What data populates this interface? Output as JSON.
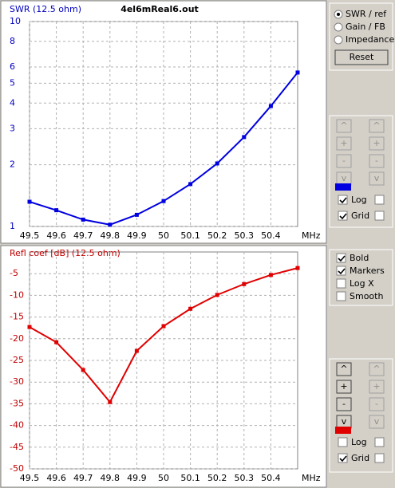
{
  "file_name": "4el6mReal6.out",
  "chart_data": [
    {
      "type": "line",
      "title": "SWR (12.5 ohm)",
      "x_unit": "MHz",
      "x": [
        49.5,
        49.6,
        49.7,
        49.8,
        49.9,
        50,
        50.1,
        50.2,
        50.3,
        50.4,
        50.5
      ],
      "series": [
        {
          "name": "SWR",
          "color": "#0000e0",
          "values": [
            1.32,
            1.2,
            1.08,
            1.02,
            1.14,
            1.33,
            1.61,
            2.03,
            2.73,
            3.87,
            5.64
          ]
        }
      ],
      "xlim": [
        49.5,
        50.5
      ],
      "xticks": [
        49.5,
        49.6,
        49.7,
        49.8,
        49.9,
        50,
        50.1,
        50.2,
        50.3,
        50.4
      ],
      "ylim": [
        1,
        10
      ],
      "yticks": [
        1,
        2,
        3,
        4,
        5,
        6,
        8,
        10
      ],
      "log_y": true,
      "grid": true,
      "title_color": "#0000c0"
    },
    {
      "type": "line",
      "title": "Refl coef [dB] (12.5 ohm)",
      "x_unit": "MHz",
      "x": [
        49.5,
        49.6,
        49.7,
        49.8,
        49.9,
        50,
        50.1,
        50.2,
        50.3,
        50.4,
        50.5
      ],
      "series": [
        {
          "name": "Refl coef",
          "color": "#e00000",
          "values": [
            -17.3,
            -20.8,
            -27.2,
            -34.6,
            -22.8,
            -17.1,
            -13.1,
            -9.9,
            -7.4,
            -5.3,
            -3.7
          ]
        }
      ],
      "xlim": [
        49.5,
        50.5
      ],
      "xticks": [
        49.5,
        49.6,
        49.7,
        49.8,
        49.9,
        50,
        50.1,
        50.2,
        50.3,
        50.4
      ],
      "ylim": [
        -50,
        0
      ],
      "yticks": [
        -50,
        -45,
        -40,
        -35,
        -30,
        -25,
        -20,
        -15,
        -10,
        -5
      ],
      "log_y": false,
      "grid": true,
      "title_color": "#c00000"
    }
  ],
  "controls": {
    "modes": {
      "labels": [
        "SWR / ref",
        "Gain / FB",
        "Impedance"
      ],
      "selected": 0
    },
    "reset": "Reset",
    "step_buttons": [
      "^",
      "+",
      "-",
      "v"
    ],
    "swr_checks": {
      "labels": [
        "Log",
        "Grid"
      ],
      "checked": [
        true,
        true
      ]
    },
    "options": {
      "labels": [
        "Bold",
        "Markers",
        "Log X",
        "Smooth"
      ],
      "checked": [
        true,
        true,
        false,
        false
      ]
    },
    "refl_checks": {
      "labels": [
        "Log",
        "Grid"
      ],
      "checked": [
        false,
        true
      ]
    }
  }
}
